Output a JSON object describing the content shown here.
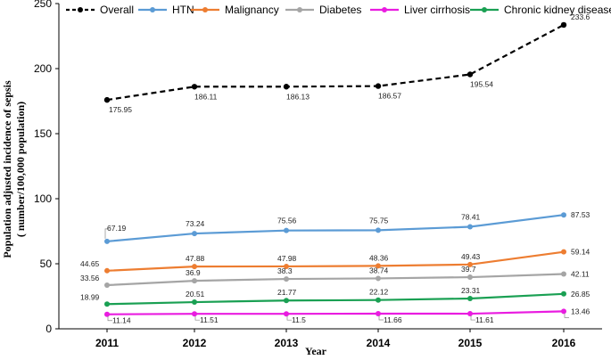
{
  "chart_data": {
    "type": "line",
    "title": "",
    "xlabel": "Year",
    "ylabel_line1": "Population adjusted incidence of sepsis",
    "ylabel_line2": "( number/100,000 population)",
    "x": [
      "2011",
      "2012",
      "2013",
      "2014",
      "2015",
      "2016"
    ],
    "ylim": [
      0,
      250
    ],
    "yticks": [
      "0",
      "50",
      "100",
      "150",
      "200",
      "250"
    ],
    "legend_position": "top",
    "series": [
      {
        "name": "Overall",
        "color": "#000000",
        "dashed": true,
        "values": [
          175.95,
          186.11,
          186.13,
          186.57,
          195.54,
          233.6
        ],
        "labels": [
          "175.95",
          "186.11",
          "186.13",
          "186.57",
          "195.54",
          "233.6"
        ]
      },
      {
        "name": "HTN",
        "color": "#5B9BD5",
        "dashed": false,
        "values": [
          67.19,
          73.24,
          75.56,
          75.75,
          78.41,
          87.53
        ],
        "labels": [
          "67.19",
          "73.24",
          "75.56",
          "75.75",
          "78.41",
          "87.53"
        ]
      },
      {
        "name": "Malignancy",
        "color": "#ED7D31",
        "dashed": false,
        "values": [
          44.65,
          47.88,
          47.98,
          48.36,
          49.43,
          59.14
        ],
        "labels": [
          "44.65",
          "47.88",
          "47.98",
          "48.36",
          "49.43",
          "59.14"
        ]
      },
      {
        "name": "Diabetes",
        "color": "#A5A5A5",
        "dashed": false,
        "values": [
          33.56,
          36.9,
          38.3,
          38.74,
          39.7,
          42.11
        ],
        "labels": [
          "33.56",
          "36.9",
          "38.3",
          "38.74",
          "39.7",
          "42.11"
        ]
      },
      {
        "name": "Liver cirrhosis",
        "color": "#E91CE0",
        "dashed": false,
        "values": [
          11.14,
          11.51,
          11.5,
          11.66,
          11.61,
          13.46
        ],
        "labels": [
          "11.14",
          "11.51",
          "11.5",
          "11.66",
          "11.61",
          "13.46"
        ]
      },
      {
        "name": "Chronic kidney disease",
        "color": "#1AA053",
        "dashed": false,
        "values": [
          18.99,
          20.51,
          21.77,
          22.12,
          23.31,
          26.85
        ],
        "labels": [
          "18.99",
          "20.51",
          "21.77",
          "22.12",
          "23.31",
          "26.85"
        ]
      }
    ]
  }
}
